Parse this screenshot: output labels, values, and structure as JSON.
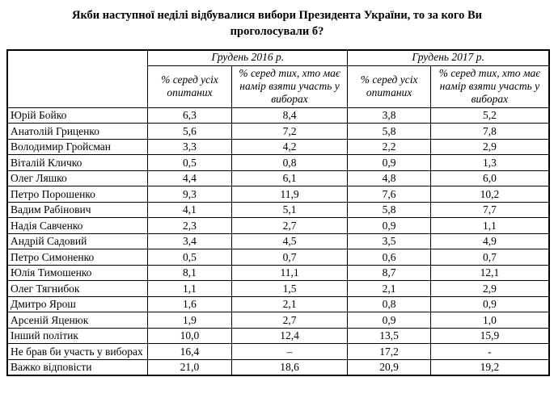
{
  "title": "Якби наступної неділі відбувалися вибори Президента України, то за кого Ви проголосували б?",
  "table": {
    "corner_label": "",
    "groups": [
      {
        "label": "Грудень 2016 р."
      },
      {
        "label": "Грудень 2017 р."
      }
    ],
    "subheaders": [
      "% серед усіх опитаних",
      "% серед тих, хто має намір взяти участь у виборах",
      "% серед усіх опитаних",
      "% серед тих, хто має намір взяти участь у виборах"
    ],
    "rows": [
      {
        "label": "Юрій Бойко",
        "values": [
          "6,3",
          "8,4",
          "3,8",
          "5,2"
        ]
      },
      {
        "label": "Анатолій Гриценко",
        "values": [
          "5,6",
          "7,2",
          "5,8",
          "7,8"
        ]
      },
      {
        "label": "Володимир Гройсман",
        "values": [
          "3,3",
          "4,2",
          "2,2",
          "2,9"
        ]
      },
      {
        "label": "Віталій Кличко",
        "values": [
          "0,5",
          "0,8",
          "0,9",
          "1,3"
        ]
      },
      {
        "label": "Олег Ляшко",
        "values": [
          "4,4",
          "6,1",
          "4,8",
          "6,0"
        ]
      },
      {
        "label": "Петро Порошенко",
        "values": [
          "9,3",
          "11,9",
          "7,6",
          "10,2"
        ]
      },
      {
        "label": "Вадим Рабінович",
        "values": [
          "4,1",
          "5,1",
          "5,8",
          "7,7"
        ]
      },
      {
        "label": "Надія Савченко",
        "values": [
          "2,3",
          "2,7",
          "0,9",
          "1,1"
        ]
      },
      {
        "label": "Андрій Садовий",
        "values": [
          "3,4",
          "4,5",
          "3,5",
          "4,9"
        ]
      },
      {
        "label": "Петро Симоненко",
        "values": [
          "0,5",
          "0,7",
          "0,6",
          "0,7"
        ]
      },
      {
        "label": "Юлія Тимошенко",
        "values": [
          "8,1",
          "11,1",
          "8,7",
          "12,1"
        ]
      },
      {
        "label": "Олег Тягнибок",
        "values": [
          "1,1",
          "1,5",
          "2,1",
          "2,9"
        ]
      },
      {
        "label": "Дмитро Ярош",
        "values": [
          "1,6",
          "2,1",
          "0,8",
          "0,9"
        ]
      },
      {
        "label": "Арсеній Яценюк",
        "values": [
          "1,9",
          "2,7",
          "0,9",
          "1,0"
        ]
      },
      {
        "label": "Інший політик",
        "values": [
          "10,0",
          "12,4",
          "13,5",
          "15,9"
        ]
      },
      {
        "label": "Не брав би участь у виборах",
        "values": [
          "16,4",
          "–",
          "17,2",
          "-"
        ]
      },
      {
        "label": "Важко відповісти",
        "values": [
          "21,0",
          "18,6",
          "20,9",
          "19,2"
        ]
      }
    ]
  },
  "chart_data": {
    "type": "table",
    "title": "Якби наступної неділі відбувалися вибори Президента України, то за кого Ви проголосували б?",
    "column_groups": [
      "Грудень 2016 р.",
      "Грудень 2017 р."
    ],
    "columns": [
      "Грудень 2016 р. — % серед усіх опитаних",
      "Грудень 2016 р. — % серед тих, хто має намір взяти участь у виборах",
      "Грудень 2017 р. — % серед усіх опитаних",
      "Грудень 2017 р. — % серед тих, хто має намір взяти участь у виборах"
    ],
    "categories": [
      "Юрій Бойко",
      "Анатолій Гриценко",
      "Володимир Гройсман",
      "Віталій Кличко",
      "Олег Ляшко",
      "Петро Порошенко",
      "Вадим Рабінович",
      "Надія Савченко",
      "Андрій Садовий",
      "Петро Симоненко",
      "Юлія Тимошенко",
      "Олег Тягнибок",
      "Дмитро Ярош",
      "Арсеній Яценюк",
      "Інший політик",
      "Не брав би участь у виборах",
      "Важко відповісти"
    ],
    "series": [
      {
        "name": "Грудень 2016 р., % серед усіх опитаних",
        "values": [
          6.3,
          5.6,
          3.3,
          0.5,
          4.4,
          9.3,
          4.1,
          2.3,
          3.4,
          0.5,
          8.1,
          1.1,
          1.6,
          1.9,
          10.0,
          16.4,
          21.0
        ]
      },
      {
        "name": "Грудень 2016 р., % серед тих, хто має намір взяти участь у виборах",
        "values": [
          8.4,
          7.2,
          4.2,
          0.8,
          6.1,
          11.9,
          5.1,
          2.7,
          4.5,
          0.7,
          11.1,
          1.5,
          2.1,
          2.7,
          12.4,
          null,
          18.6
        ]
      },
      {
        "name": "Грудень 2017 р., % серед усіх опитаних",
        "values": [
          3.8,
          5.8,
          2.2,
          0.9,
          4.8,
          7.6,
          5.8,
          0.9,
          3.5,
          0.6,
          8.7,
          2.1,
          0.8,
          0.9,
          13.5,
          17.2,
          20.9
        ]
      },
      {
        "name": "Грудень 2017 р., % серед тих, хто має намір взяти участь у виборах",
        "values": [
          5.2,
          7.8,
          2.9,
          1.3,
          6.0,
          10.2,
          7.7,
          1.1,
          4.9,
          0.7,
          12.1,
          2.9,
          0.9,
          1.0,
          15.9,
          null,
          19.2
        ]
      }
    ],
    "value_unit": "%",
    "decimal_separator": ","
  }
}
